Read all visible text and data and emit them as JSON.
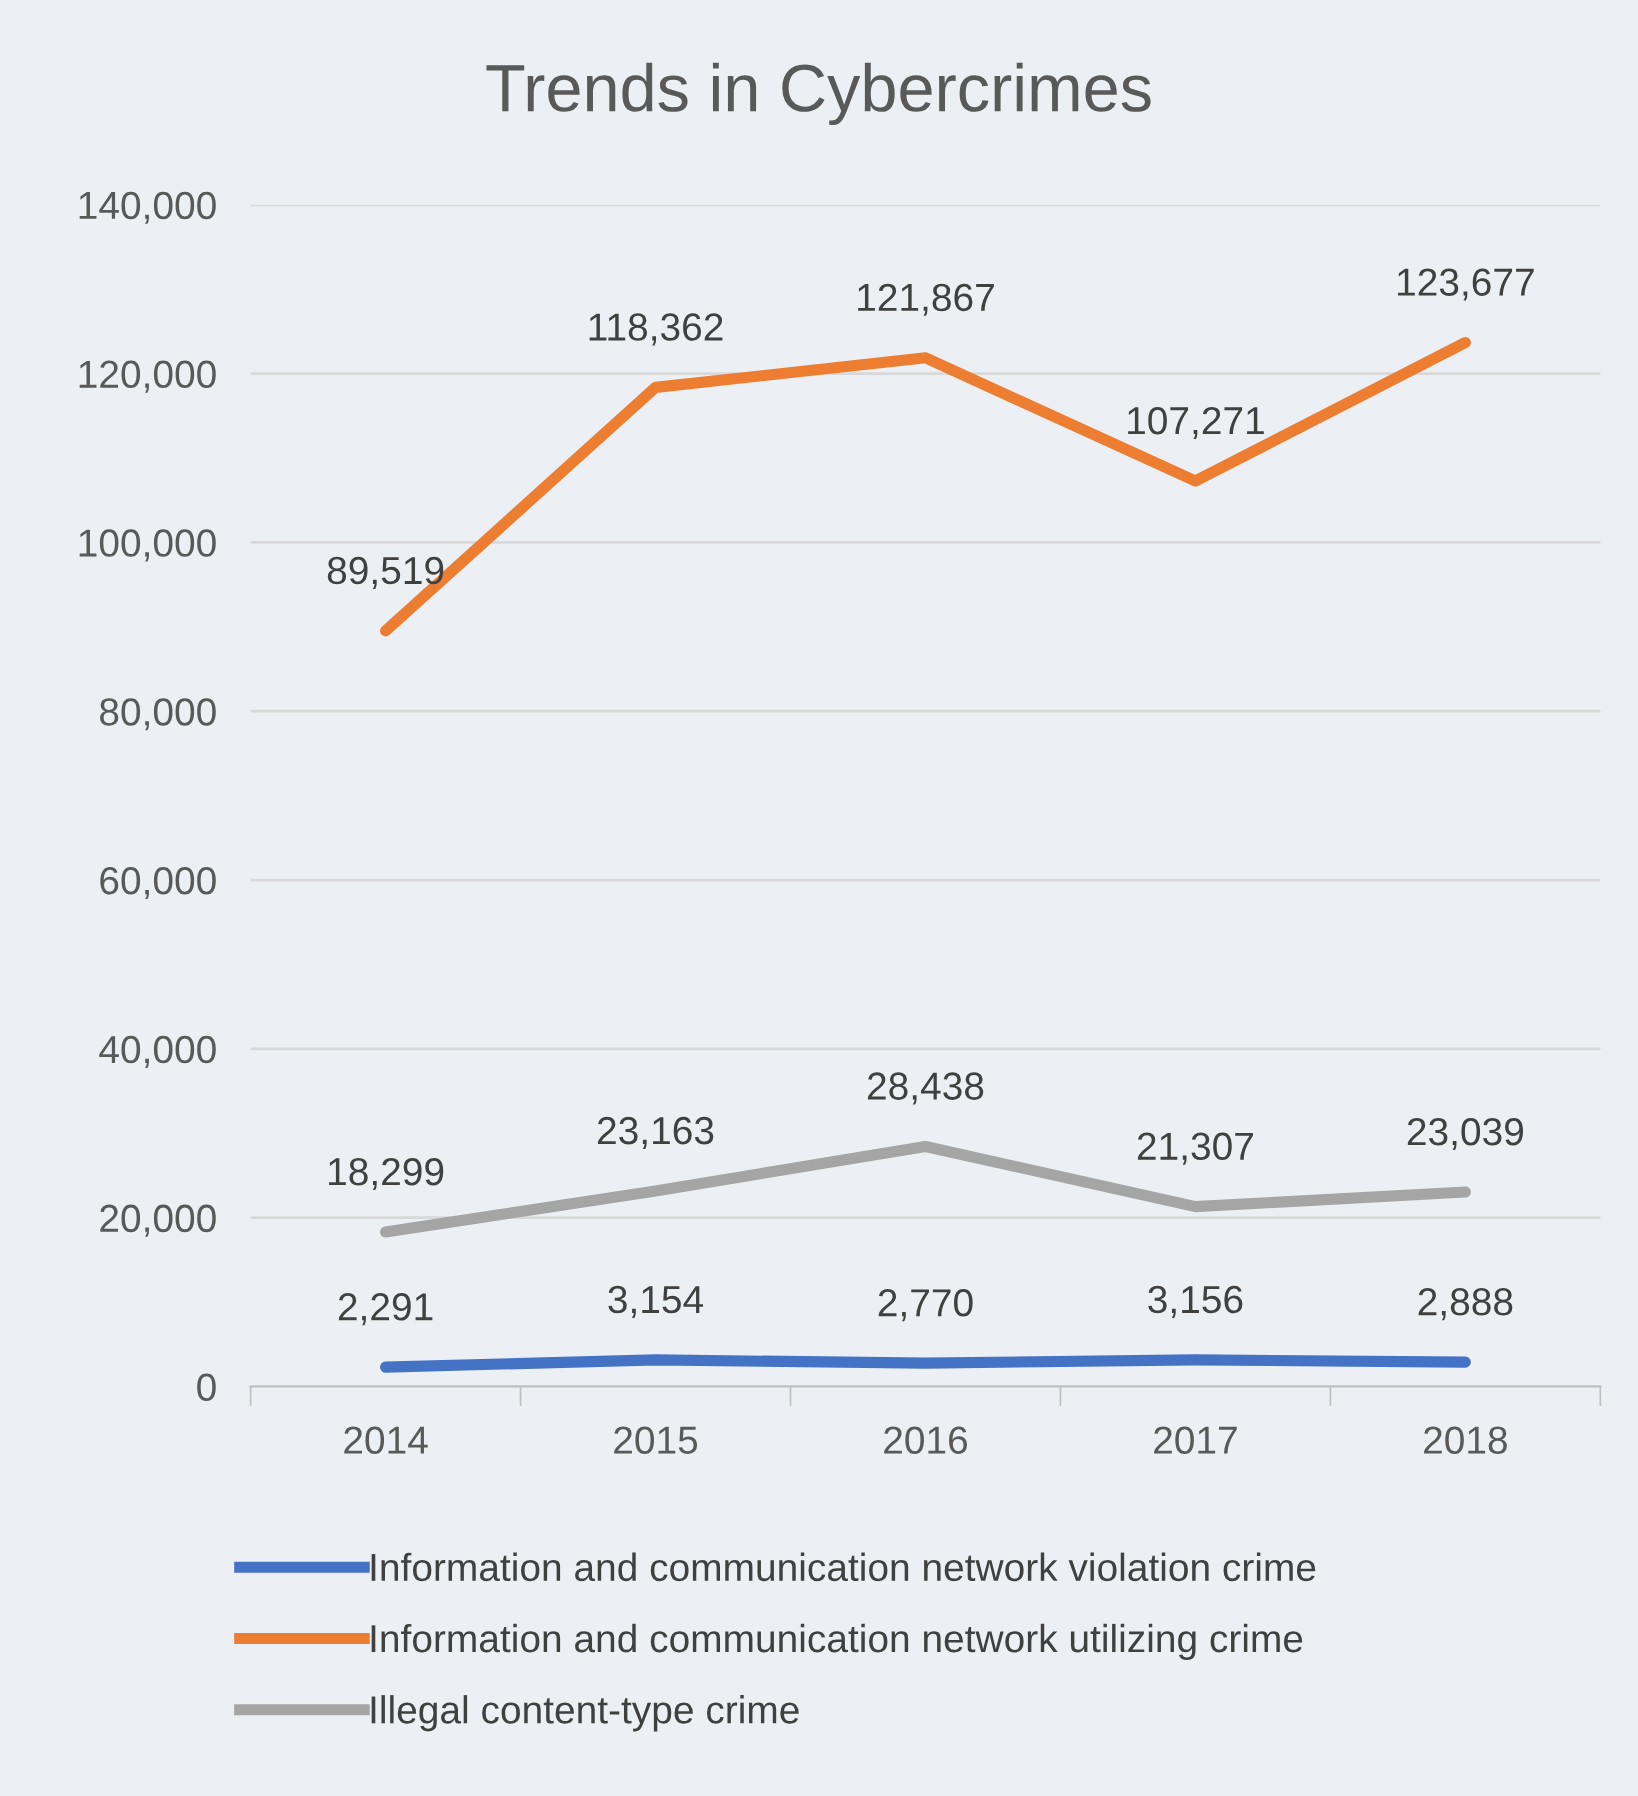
{
  "chart_data": {
    "type": "line",
    "title": "Trends in Cybercrimes",
    "categories": [
      "2014",
      "2015",
      "2016",
      "2017",
      "2018"
    ],
    "series": [
      {
        "name": "Information and communication network violation crime",
        "color": "#4472c4",
        "values": [
          2291,
          3154,
          2770,
          3156,
          2888
        ],
        "value_labels": [
          "2,291",
          "3,154",
          "2,770",
          "3,156",
          "2,888"
        ]
      },
      {
        "name": "Information and communication network utilizing crime",
        "color": "#ed7d31",
        "values": [
          89519,
          118362,
          121867,
          107271,
          123677
        ],
        "value_labels": [
          "89,519",
          "118,362",
          "121,867",
          "107,271",
          "123,677"
        ]
      },
      {
        "name": "Illegal content-type crime",
        "color": "#a5a5a5",
        "values": [
          18299,
          23163,
          28438,
          21307,
          23039
        ],
        "value_labels": [
          "18,299",
          "23,163",
          "28,438",
          "21,307",
          "23,039"
        ]
      }
    ],
    "ylim": [
      0,
      140000
    ],
    "yticks": [
      {
        "value": 0,
        "label": "0"
      },
      {
        "value": 20000,
        "label": "20,000"
      },
      {
        "value": 40000,
        "label": "40,000"
      },
      {
        "value": 60000,
        "label": "60,000"
      },
      {
        "value": 80000,
        "label": "80,000"
      },
      {
        "value": 100000,
        "label": "100,000"
      },
      {
        "value": 120000,
        "label": "120,000"
      },
      {
        "value": 140000,
        "label": "140,000"
      }
    ],
    "grid": "y",
    "legend": "bottom",
    "marker": "none",
    "line_style": "solid"
  }
}
